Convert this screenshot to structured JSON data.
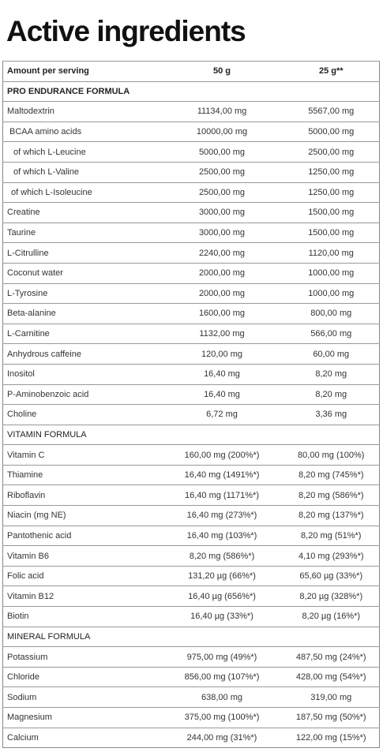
{
  "title": "Active ingredients",
  "table": {
    "header": [
      "Amount per serving",
      "50 g",
      "25 g**"
    ],
    "rows": [
      [
        "PRO ENDURANCE FORMULA"
      ],
      [
        "Maltodextrin",
        "11134,00 mg",
        "5567,00 mg"
      ],
      [
        "BCAA amino acids",
        "10000,00 mg",
        "5000,00 mg"
      ],
      [
        "of which L-Leucine",
        "5000,00 mg",
        "2500,00 mg"
      ],
      [
        "of which L-Valine",
        "2500,00 mg",
        "1250,00 mg"
      ],
      [
        "of which L-Isoleucine",
        "2500,00 mg",
        "1250,00 mg"
      ],
      [
        "Creatine",
        "3000,00 mg",
        "1500,00 mg"
      ],
      [
        "Taurine",
        "3000,00 mg",
        "1500,00 mg"
      ],
      [
        "L-Citrulline",
        "2240,00 mg",
        "1120,00 mg"
      ],
      [
        "Coconut water",
        "2000,00 mg",
        "1000,00 mg"
      ],
      [
        "L-Tyrosine",
        "2000,00 mg",
        "1000,00 mg"
      ],
      [
        "Beta-alanine",
        "1600,00 mg",
        "800,00 mg"
      ],
      [
        "L-Carnitine",
        "1132,00 mg",
        "566,00 mg"
      ],
      [
        "Anhydrous caffeine",
        "120,00 mg",
        "60,00 mg"
      ],
      [
        "Inositol",
        "16,40 mg",
        "8,20 mg"
      ],
      [
        "P-Aminobenzoic acid",
        "16,40 mg",
        "8,20 mg"
      ],
      [
        "Choline",
        "6,72 mg",
        "3,36 mg"
      ],
      [
        "VITAMIN FORMULA"
      ],
      [
        "Vitamin C",
        "160,00 mg (200%*)",
        "80,00 mg (100%)"
      ],
      [
        "Thiamine",
        "16,40 mg (1491%*)",
        "8,20 mg (745%*)"
      ],
      [
        "Riboflavin",
        "16,40 mg (1171%*)",
        "8,20 mg (586%*)"
      ],
      [
        "Niacin (mg NE)",
        "16,40 mg (273%*)",
        "8,20 mg (137%*)"
      ],
      [
        "Pantothenic acid",
        "16,40 mg (103%*)",
        "8,20 mg (51%*)"
      ],
      [
        "Vitamin B6",
        "8,20 mg (586%*)",
        "4,10 mg (293%*)"
      ],
      [
        "Folic acid",
        "131,20 µg (66%*)",
        "65,60 µg (33%*)"
      ],
      [
        "Vitamin B12",
        "16,40 µg (656%*)",
        "8,20 µg (328%*)"
      ],
      [
        "Biotin",
        "16,40 µg (33%*)",
        "8,20 µg (16%*)"
      ],
      [
        "MINERAL FORMULA"
      ],
      [
        "Potassium",
        "975,00 mg (49%*)",
        "487,50 mg (24%*)"
      ],
      [
        "Chloride",
        "856,00 mg (107%*)",
        "428,00 mg (54%*)"
      ],
      [
        "Sodium",
        "638,00 mg",
        "319,00 mg"
      ],
      [
        "Magnesium",
        "375,00 mg (100%*)",
        "187,50 mg (50%*)"
      ],
      [
        "Calcium",
        "244,00 mg (31%*)",
        "122,00 mg (15%*)"
      ]
    ]
  }
}
